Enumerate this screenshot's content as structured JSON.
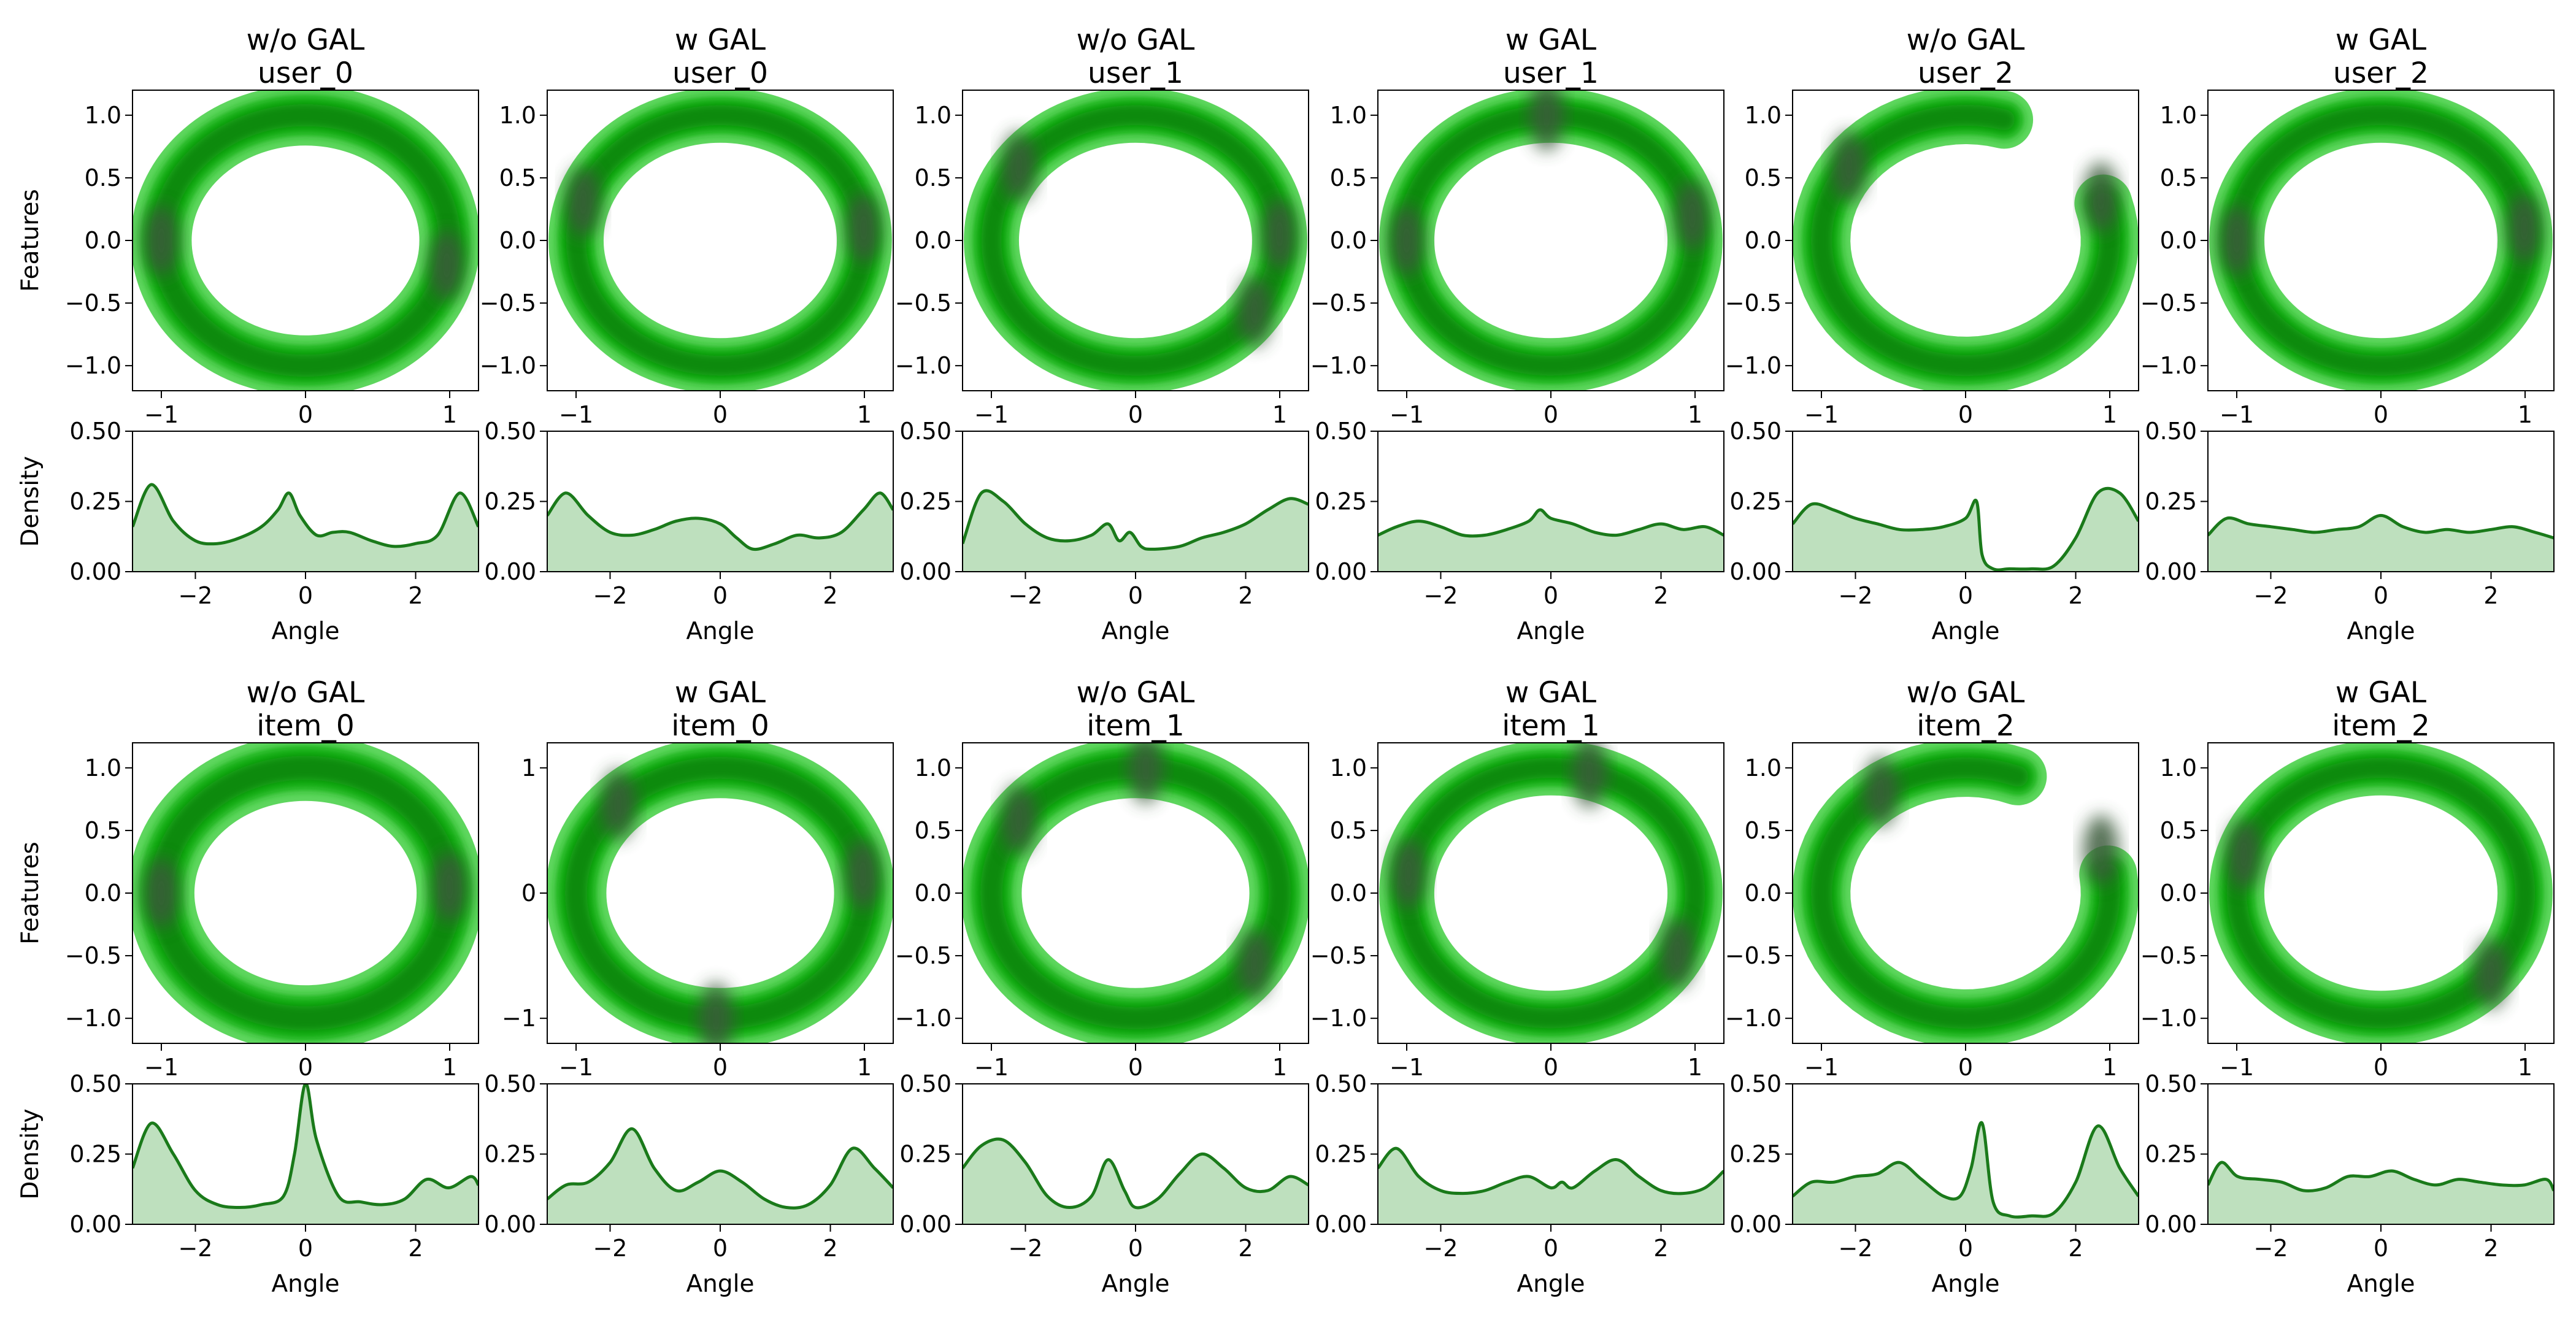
{
  "chart_data": {
    "type": "kde-grid",
    "layout": {
      "rows": 2,
      "cols": 6
    },
    "colors": {
      "curve": "#1a7a1a",
      "fill": "#a8d5a8",
      "ring_light": "#5ed65e",
      "ring_mid": "#16b016",
      "ring_dark": "#0a8a0a",
      "ring_core": "#3a5a3a"
    },
    "shared_labels": {
      "features_ylabel": "Features",
      "density_ylabel": "Density",
      "angle_xlabel": "Angle"
    },
    "feature_ticks_default": [
      -1.0,
      -0.5,
      0.0,
      0.5,
      1.0
    ],
    "feature_tick_labels_default": [
      "−1.0",
      "−0.5",
      "0.0",
      "0.5",
      "1.0"
    ],
    "feature_x_ticks": [
      -1,
      0,
      1
    ],
    "feature_x_tick_labels": [
      "−1",
      "0",
      "1"
    ],
    "density_y_ticks": [
      0.0,
      0.25,
      0.5
    ],
    "density_y_tick_labels": [
      "0.00",
      "0.25",
      "0.50"
    ],
    "density_x_ticks": [
      -2,
      0,
      2
    ],
    "density_x_tick_labels": [
      "−2",
      "0",
      "2"
    ],
    "density_xlim": [
      -3.14159,
      3.14159
    ],
    "density_ylim": [
      0,
      0.5
    ],
    "feature_lim": [
      -1.2,
      1.2
    ],
    "panels": [
      {
        "title1": "w/o GAL",
        "title2": "user_0",
        "angles": [
          -3.14,
          -2.8,
          -2.4,
          -2.0,
          -1.6,
          -1.2,
          -0.8,
          -0.5,
          -0.3,
          -0.1,
          0.2,
          0.5,
          0.8,
          1.2,
          1.6,
          2.0,
          2.4,
          2.8,
          3.14
        ],
        "density": [
          0.16,
          0.31,
          0.18,
          0.11,
          0.1,
          0.12,
          0.16,
          0.22,
          0.28,
          0.2,
          0.13,
          0.14,
          0.14,
          0.11,
          0.09,
          0.1,
          0.13,
          0.28,
          0.16
        ]
      },
      {
        "title1": "w GAL",
        "title2": "user_0",
        "angles": [
          -3.14,
          -2.8,
          -2.4,
          -2.0,
          -1.6,
          -1.2,
          -0.8,
          -0.4,
          0.0,
          0.3,
          0.6,
          1.0,
          1.4,
          1.8,
          2.2,
          2.6,
          2.9,
          3.14
        ],
        "density": [
          0.2,
          0.28,
          0.2,
          0.14,
          0.13,
          0.15,
          0.18,
          0.19,
          0.17,
          0.12,
          0.08,
          0.1,
          0.13,
          0.12,
          0.14,
          0.22,
          0.28,
          0.22
        ]
      },
      {
        "title1": "w/o GAL",
        "title2": "user_1",
        "angles": [
          -3.14,
          -2.8,
          -2.4,
          -2.0,
          -1.6,
          -1.2,
          -0.8,
          -0.5,
          -0.3,
          -0.1,
          0.1,
          0.3,
          0.8,
          1.2,
          1.6,
          2.0,
          2.4,
          2.8,
          3.14
        ],
        "density": [
          0.1,
          0.28,
          0.25,
          0.17,
          0.12,
          0.11,
          0.13,
          0.17,
          0.11,
          0.14,
          0.09,
          0.08,
          0.09,
          0.12,
          0.14,
          0.17,
          0.22,
          0.26,
          0.24
        ]
      },
      {
        "title1": "w GAL",
        "title2": "user_1",
        "angles": [
          -3.14,
          -2.8,
          -2.4,
          -2.0,
          -1.6,
          -1.2,
          -0.8,
          -0.4,
          -0.2,
          0.0,
          0.4,
          0.8,
          1.2,
          1.6,
          2.0,
          2.4,
          2.8,
          3.14
        ],
        "density": [
          0.13,
          0.16,
          0.18,
          0.16,
          0.13,
          0.13,
          0.15,
          0.18,
          0.22,
          0.19,
          0.17,
          0.14,
          0.13,
          0.15,
          0.17,
          0.15,
          0.16,
          0.13
        ]
      },
      {
        "title1": "w/o GAL",
        "title2": "user_2",
        "angles": [
          -3.14,
          -2.8,
          -2.4,
          -2.0,
          -1.6,
          -1.2,
          -0.8,
          -0.4,
          0.0,
          0.2,
          0.3,
          0.5,
          0.8,
          1.2,
          1.6,
          2.0,
          2.4,
          2.8,
          3.14
        ],
        "density": [
          0.17,
          0.24,
          0.22,
          0.19,
          0.17,
          0.15,
          0.15,
          0.16,
          0.19,
          0.25,
          0.06,
          0.01,
          0.01,
          0.01,
          0.02,
          0.12,
          0.28,
          0.28,
          0.18
        ]
      },
      {
        "title1": "w GAL",
        "title2": "user_2",
        "angles": [
          -3.14,
          -2.8,
          -2.4,
          -2.0,
          -1.6,
          -1.2,
          -0.8,
          -0.4,
          0.0,
          0.4,
          0.8,
          1.2,
          1.6,
          2.0,
          2.4,
          2.8,
          3.14
        ],
        "density": [
          0.13,
          0.19,
          0.17,
          0.16,
          0.15,
          0.14,
          0.15,
          0.16,
          0.2,
          0.16,
          0.14,
          0.15,
          0.14,
          0.15,
          0.16,
          0.14,
          0.12
        ]
      },
      {
        "title1": "w/o GAL",
        "title2": "item_0",
        "angles": [
          -3.14,
          -2.8,
          -2.4,
          -2.0,
          -1.6,
          -1.2,
          -0.8,
          -0.4,
          -0.2,
          0.0,
          0.2,
          0.6,
          1.0,
          1.4,
          1.8,
          2.2,
          2.6,
          3.0,
          3.14
        ],
        "density": [
          0.2,
          0.36,
          0.25,
          0.12,
          0.07,
          0.06,
          0.07,
          0.1,
          0.25,
          0.5,
          0.3,
          0.1,
          0.08,
          0.07,
          0.09,
          0.16,
          0.13,
          0.17,
          0.14
        ]
      },
      {
        "title1": "w GAL",
        "title2": "item_0",
        "angles": [
          -3.14,
          -2.8,
          -2.4,
          -2.0,
          -1.6,
          -1.2,
          -0.8,
          -0.4,
          0.0,
          0.4,
          0.8,
          1.2,
          1.6,
          2.0,
          2.4,
          2.8,
          3.14
        ],
        "density": [
          0.09,
          0.14,
          0.15,
          0.22,
          0.34,
          0.2,
          0.12,
          0.15,
          0.19,
          0.15,
          0.09,
          0.06,
          0.07,
          0.14,
          0.27,
          0.2,
          0.13
        ]
      },
      {
        "title1": "w/o GAL",
        "title2": "item_1",
        "angles": [
          -3.14,
          -2.8,
          -2.4,
          -2.0,
          -1.6,
          -1.2,
          -0.8,
          -0.5,
          -0.2,
          0.0,
          0.4,
          0.8,
          1.2,
          1.6,
          2.0,
          2.4,
          2.8,
          3.14
        ],
        "density": [
          0.2,
          0.28,
          0.3,
          0.22,
          0.1,
          0.06,
          0.1,
          0.23,
          0.12,
          0.06,
          0.09,
          0.18,
          0.25,
          0.2,
          0.13,
          0.12,
          0.17,
          0.14
        ]
      },
      {
        "title1": "w GAL",
        "title2": "item_1",
        "angles": [
          -3.14,
          -2.8,
          -2.4,
          -2.0,
          -1.6,
          -1.2,
          -0.8,
          -0.4,
          0.0,
          0.2,
          0.4,
          0.8,
          1.2,
          1.6,
          2.0,
          2.4,
          2.8,
          3.14
        ],
        "density": [
          0.2,
          0.27,
          0.17,
          0.12,
          0.11,
          0.12,
          0.15,
          0.17,
          0.13,
          0.15,
          0.13,
          0.19,
          0.23,
          0.17,
          0.12,
          0.11,
          0.13,
          0.19
        ]
      },
      {
        "title1": "w/o GAL",
        "title2": "item_2",
        "angles": [
          -3.14,
          -2.8,
          -2.4,
          -2.0,
          -1.6,
          -1.2,
          -0.8,
          -0.4,
          -0.1,
          0.1,
          0.3,
          0.5,
          0.8,
          1.2,
          1.6,
          2.0,
          2.4,
          2.8,
          3.14
        ],
        "density": [
          0.1,
          0.15,
          0.15,
          0.17,
          0.18,
          0.22,
          0.16,
          0.1,
          0.1,
          0.2,
          0.36,
          0.08,
          0.03,
          0.03,
          0.04,
          0.15,
          0.35,
          0.2,
          0.1
        ]
      },
      {
        "title1": "w GAL",
        "title2": "item_2",
        "angles": [
          -3.14,
          -2.9,
          -2.6,
          -2.2,
          -1.8,
          -1.4,
          -1.0,
          -0.6,
          -0.2,
          0.2,
          0.6,
          1.0,
          1.4,
          1.8,
          2.2,
          2.6,
          3.0,
          3.14
        ],
        "density": [
          0.14,
          0.22,
          0.17,
          0.16,
          0.15,
          0.12,
          0.13,
          0.17,
          0.17,
          0.19,
          0.16,
          0.14,
          0.16,
          0.15,
          0.14,
          0.14,
          0.16,
          0.12
        ]
      }
    ]
  }
}
